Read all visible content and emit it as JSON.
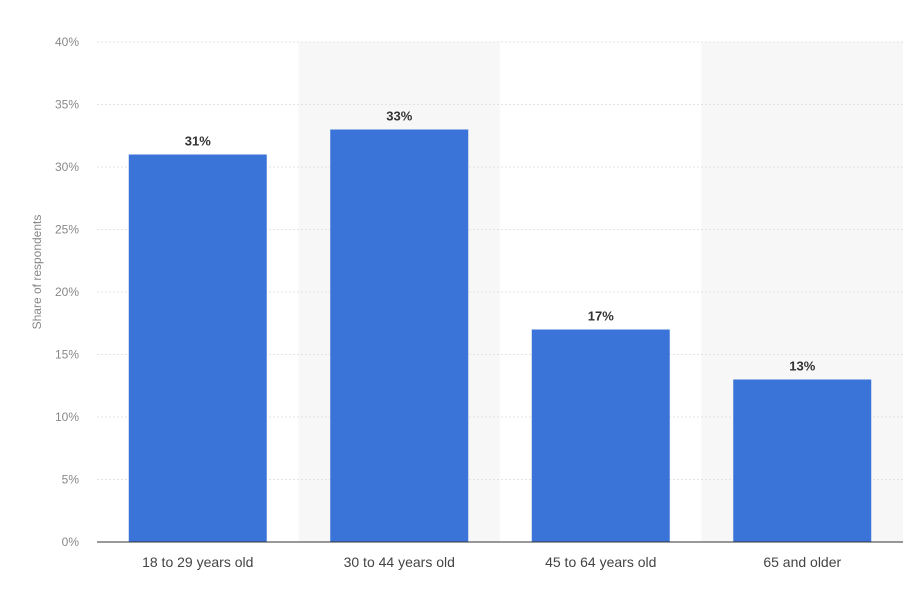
{
  "chart_data": {
    "type": "bar",
    "categories": [
      "18 to 29 years old",
      "30 to 44 years old",
      "45 to 64 years old",
      "65 and older"
    ],
    "values": [
      31,
      33,
      17,
      13
    ],
    "value_labels": [
      "31%",
      "33%",
      "17%",
      "13%"
    ],
    "title": "",
    "xlabel": "",
    "ylabel": "Share of respondents",
    "ylim": [
      0,
      40
    ],
    "yticks": [
      0,
      5,
      10,
      15,
      20,
      25,
      30,
      35,
      40
    ],
    "ytick_labels": [
      "0%",
      "5%",
      "10%",
      "15%",
      "20%",
      "25%",
      "30%",
      "35%",
      "40%"
    ],
    "grid": true,
    "legend": "none",
    "colors": {
      "bar": "#3b74d8",
      "band": "#f7f7f7",
      "grid": "#e3e3e3",
      "axis": "#333333"
    }
  }
}
